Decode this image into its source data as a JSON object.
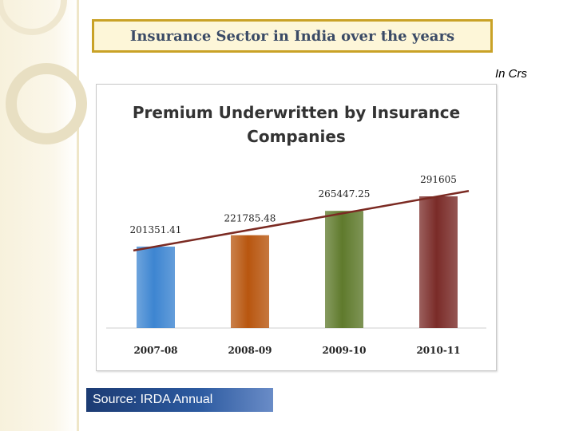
{
  "slide": {
    "title": "Insurance Sector in India over the years",
    "unit_label": "In Crs",
    "source": "Source: IRDA Annual"
  },
  "colors": {
    "title_border": "#c9a227",
    "title_fill": "#fdf6d8",
    "trend_line": "#7b2a22"
  },
  "chart_data": {
    "type": "bar",
    "title": "Premium Underwritten by Insurance Companies",
    "title_lines": [
      "Premium Underwritten by Insurance",
      "Companies"
    ],
    "categories": [
      "2007-08",
      "2008-09",
      "2009-10",
      "2010-11"
    ],
    "series": [
      {
        "values": [
          201351.41,
          221785.48,
          265447.25,
          291605
        ]
      }
    ],
    "data_labels": [
      "201351.41",
      "221785.48",
      "265447.25",
      "291605"
    ],
    "bar_colors": [
      "#3d85d1",
      "#b8560f",
      "#5f7a2c",
      "#7a2b28"
    ],
    "trendline": true,
    "ylim": [
      55000,
      291605
    ],
    "grid": false,
    "legend": "none"
  }
}
